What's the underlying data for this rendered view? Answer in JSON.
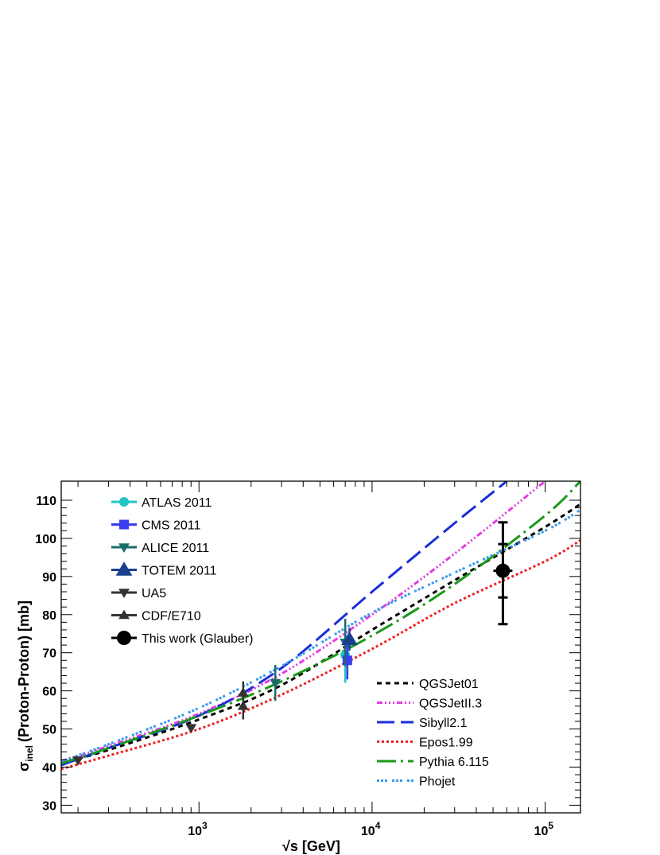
{
  "chart_data": {
    "type": "scatter",
    "xlabel": "√s   [GeV]",
    "ylabel_main": "σ",
    "ylabel_sub": "inel",
    "ylabel_rest": "(Proton-Proton)    [mb]",
    "x_scale": "log",
    "xlim": [
      160,
      160000
    ],
    "ylim": [
      28,
      115
    ],
    "x_ticks": [
      {
        "value": 1000,
        "base": "10",
        "exp": "3"
      },
      {
        "value": 10000,
        "base": "10",
        "exp": "4"
      },
      {
        "value": 100000,
        "base": "10",
        "exp": "5"
      }
    ],
    "y_ticks": [
      30,
      40,
      50,
      60,
      70,
      80,
      90,
      100,
      110
    ],
    "grid": false,
    "data_legend_position": "top-left",
    "model_legend_position": "bottom-right",
    "data_series": [
      {
        "name": "ATLAS 2011",
        "marker": "circle",
        "color": "#22c4c4",
        "points": [
          {
            "x": 7000,
            "y": 69.4,
            "err_lo": 7.3,
            "err_hi": 7.3
          }
        ]
      },
      {
        "name": "CMS 2011",
        "marker": "square",
        "color": "#3b3bf0",
        "points": [
          {
            "x": 7200,
            "y": 68.0,
            "err_lo": 5.0,
            "err_hi": 5.0
          }
        ]
      },
      {
        "name": "ALICE 2011",
        "marker": "triangle-down",
        "color": "#1a6b6b",
        "points": [
          {
            "x": 2760,
            "y": 62.1,
            "err_lo": 4.7,
            "err_hi": 4.7
          },
          {
            "x": 7000,
            "y": 72.7,
            "err_lo": 6.2,
            "err_hi": 6.2
          }
        ]
      },
      {
        "name": "TOTEM 2011",
        "marker": "triangle-up",
        "color": "#1a3f8f",
        "points": [
          {
            "x": 7400,
            "y": 73.5,
            "err_lo": 3.0,
            "err_hi": 3.0
          }
        ]
      },
      {
        "name": "UA5",
        "marker": "triangle-down",
        "color": "#333333",
        "points": [
          {
            "x": 200,
            "y": 41.8,
            "err_lo": 0.6,
            "err_hi": 0.6
          },
          {
            "x": 900,
            "y": 50.3,
            "err_lo": 0.4,
            "err_hi": 0.4
          }
        ]
      },
      {
        "name": "CDF/E710",
        "marker": "triangle-up",
        "color": "#333333",
        "points": [
          {
            "x": 1800,
            "y": 56.0,
            "err_lo": 3.5,
            "err_hi": 3.5
          },
          {
            "x": 1800,
            "y": 59.5,
            "err_lo": 3.0,
            "err_hi": 3.0
          }
        ]
      },
      {
        "name": "This work (Glauber)",
        "marker": "circle",
        "color": "#000000",
        "points": [
          {
            "x": 57000,
            "y": 91.5,
            "err_lo": 14.0,
            "err_hi": 12.7,
            "inner_lo": 7.0,
            "inner_hi": 7.0
          }
        ]
      }
    ],
    "model_series": [
      {
        "name": "QGSJet01",
        "color": "#000000",
        "dash": "6,5",
        "x": [
          160,
          300,
          1000,
          3000,
          10000,
          30000,
          100000,
          160000
        ],
        "y": [
          41.0,
          44.5,
          52.5,
          61.5,
          76.0,
          89.0,
          103.0,
          109.0
        ]
      },
      {
        "name": "QGSJetII.3",
        "color": "#e43ae4",
        "dash": "7,3,2,3,2,3,2,3",
        "x": [
          160,
          300,
          1000,
          3000,
          10000,
          30000,
          100000
        ],
        "y": [
          41.5,
          45.5,
          54.0,
          64.5,
          80.0,
          96.0,
          115.0
        ]
      },
      {
        "name": "Sibyll2.1",
        "color": "#1a2fd9",
        "dash": "22,8",
        "x": [
          160,
          300,
          1000,
          3000,
          10000,
          30000,
          60000
        ],
        "y": [
          40.5,
          45.0,
          53.5,
          66.0,
          86.0,
          104.0,
          115.0
        ]
      },
      {
        "name": "Epos1.99",
        "color": "#ee2222",
        "dash": "3,3",
        "x": [
          160,
          300,
          1000,
          3000,
          10000,
          30000,
          100000,
          160000
        ],
        "y": [
          39.5,
          43.0,
          50.0,
          59.0,
          71.0,
          83.0,
          94.0,
          99.5
        ]
      },
      {
        "name": "Pythia 6.115",
        "color": "#1a9a1a",
        "dash": "24,6,3,6",
        "x": [
          160,
          300,
          1000,
          3000,
          10000,
          30000,
          100000,
          160000
        ],
        "y": [
          41.0,
          45.0,
          53.5,
          62.5,
          74.5,
          88.0,
          106.0,
          115.0
        ]
      },
      {
        "name": "Phojet",
        "color": "#3a9aee",
        "dash": "3,2,3,2,3,6",
        "x": [
          160,
          300,
          1000,
          3000,
          10000,
          30000,
          100000,
          160000
        ],
        "y": [
          41.5,
          46.0,
          55.5,
          66.5,
          80.5,
          91.0,
          102.0,
          107.5
        ]
      }
    ]
  }
}
